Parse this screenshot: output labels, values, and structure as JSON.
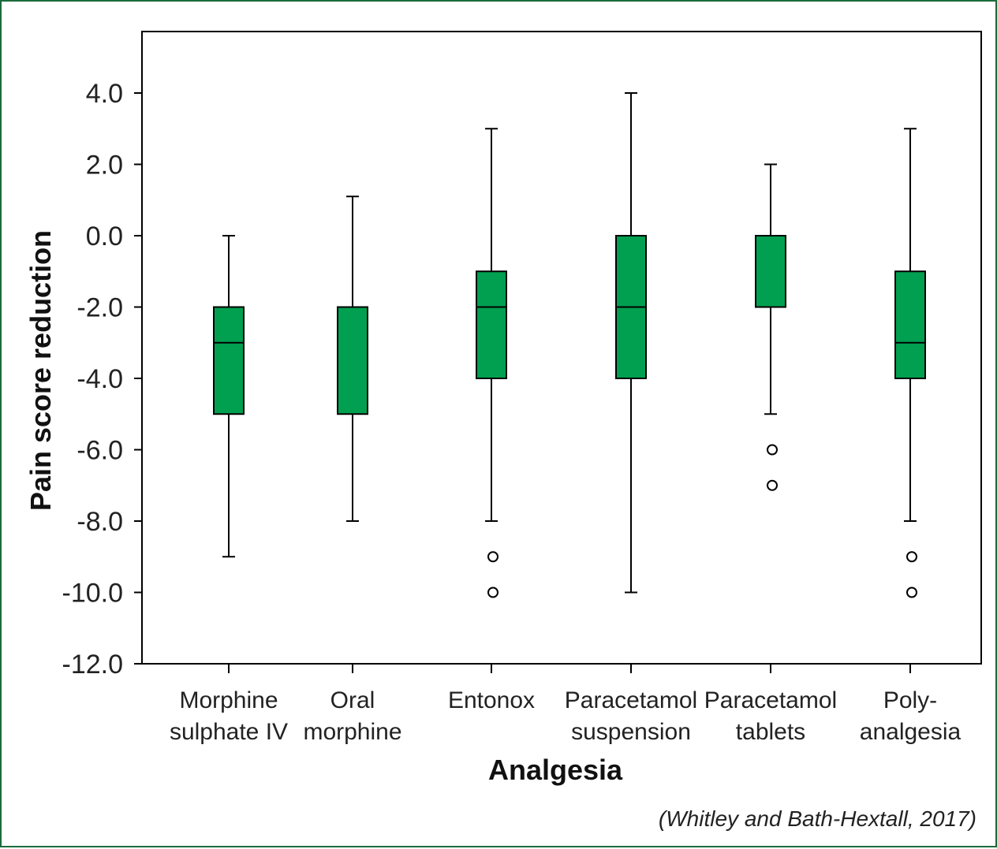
{
  "chart_data": {
    "type": "boxplot",
    "xlabel": "Analgesia",
    "ylabel": "Pain score reduction",
    "ylim": [
      -12.0,
      5.5
    ],
    "yticks": [
      "4.0",
      "2.0",
      "0.0",
      "-2.0",
      "-4.0",
      "-6.0",
      "-8.0",
      "-10.0",
      "-12.0"
    ],
    "ytick_values": [
      4,
      2,
      0,
      -2,
      -4,
      -6,
      -8,
      -10,
      -12
    ],
    "grid": false,
    "box_color": "#00a050",
    "categories": [
      {
        "lines": [
          "Morphine",
          "sulphate IV"
        ],
        "whisker_low": -9,
        "q1": -5,
        "median": -3,
        "q3": -2,
        "whisker_high": 0,
        "outliers": []
      },
      {
        "lines": [
          "Oral",
          "morphine"
        ],
        "whisker_low": -8,
        "q1": -5,
        "median": null,
        "q3": -2,
        "whisker_high": 1.1,
        "outliers": []
      },
      {
        "lines": [
          "Entonox",
          ""
        ],
        "whisker_low": -8,
        "q1": -4,
        "median": -2,
        "q3": -1,
        "whisker_high": 3,
        "outliers": [
          -9,
          -10
        ]
      },
      {
        "lines": [
          "Paracetamol",
          "suspension"
        ],
        "whisker_low": -10,
        "q1": -4,
        "median": -2,
        "q3": 0,
        "whisker_high": 4,
        "outliers": []
      },
      {
        "lines": [
          "Paracetamol",
          "tablets"
        ],
        "whisker_low": -5,
        "q1": -2,
        "median": null,
        "q3": 0,
        "whisker_high": 2,
        "outliers": [
          -6,
          -7
        ]
      },
      {
        "lines": [
          "Poly-",
          "analgesia"
        ],
        "whisker_low": -8,
        "q1": -4,
        "median": -3,
        "q3": -1,
        "whisker_high": 3,
        "outliers": [
          -9,
          -10
        ]
      }
    ]
  },
  "source": "(Whitley and Bath-Hextall, 2017)"
}
